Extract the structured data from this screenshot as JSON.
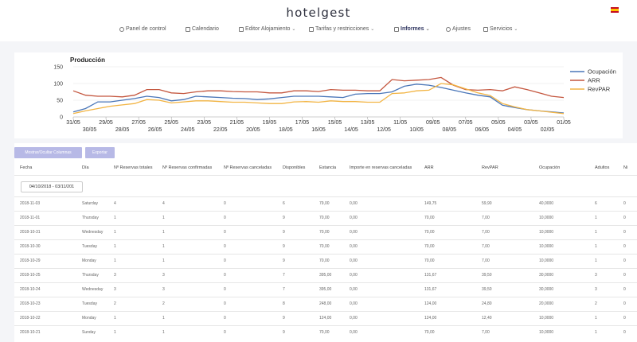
{
  "app": {
    "logo": "hotelgest",
    "flag": "spain-flag-icon"
  },
  "nav": [
    {
      "label": "Panel de control",
      "icon": "dashboard-icon",
      "caret": false,
      "active": false
    },
    {
      "label": "Calendario",
      "icon": "calendar-icon",
      "caret": false,
      "active": false
    },
    {
      "label": "Editor Alojamiento",
      "icon": "edit-icon",
      "caret": true,
      "active": false
    },
    {
      "label": "Tarifas y restricciones",
      "icon": "tag-icon",
      "caret": true,
      "active": false
    },
    {
      "label": "Informes",
      "icon": "report-icon",
      "caret": true,
      "active": true
    },
    {
      "label": "Ajustes",
      "icon": "gear-icon",
      "caret": false,
      "active": false
    },
    {
      "label": "Servicios",
      "icon": "services-icon",
      "caret": true,
      "active": false
    }
  ],
  "chart_data": {
    "type": "line",
    "title": "Producción",
    "ylim": [
      0,
      150
    ],
    "yticks": [
      0,
      50,
      100,
      150
    ],
    "x_labels_top": [
      "31/05",
      "29/05",
      "27/05",
      "25/05",
      "23/05",
      "21/05",
      "19/05",
      "17/05",
      "15/05",
      "13/05",
      "11/05",
      "09/05",
      "07/05",
      "05/05",
      "03/05",
      "01/05"
    ],
    "x_labels_bottom": [
      "30/05",
      "28/05",
      "26/05",
      "24/05",
      "22/05",
      "20/05",
      "18/05",
      "16/05",
      "14/05",
      "12/05",
      "10/05",
      "08/05",
      "06/05",
      "04/05",
      "02/05"
    ],
    "legend_placement": "right",
    "series": [
      {
        "name": "Ocupación",
        "color": "#4a76b8",
        "values": [
          15,
          25,
          45,
          45,
          50,
          55,
          62,
          58,
          48,
          52,
          62,
          60,
          58,
          56,
          55,
          52,
          54,
          58,
          62,
          62,
          62,
          60,
          58,
          68,
          70,
          70,
          75,
          92,
          98,
          95,
          88,
          80,
          72,
          65,
          60,
          35,
          28,
          22,
          18,
          15,
          12
        ]
      },
      {
        "name": "ARR",
        "color": "#c4563e",
        "values": [
          78,
          65,
          62,
          62,
          60,
          65,
          82,
          82,
          72,
          70,
          75,
          78,
          78,
          76,
          75,
          75,
          72,
          72,
          78,
          78,
          76,
          82,
          80,
          80,
          78,
          78,
          112,
          108,
          110,
          112,
          118,
          95,
          82,
          80,
          82,
          78,
          90,
          82,
          72,
          62,
          58
        ]
      },
      {
        "name": "RevPAR",
        "color": "#f2b443",
        "values": [
          10,
          18,
          25,
          32,
          36,
          40,
          52,
          50,
          42,
          45,
          48,
          48,
          46,
          44,
          44,
          42,
          40,
          40,
          45,
          46,
          44,
          48,
          46,
          46,
          44,
          44,
          70,
          72,
          78,
          80,
          100,
          96,
          84,
          72,
          64,
          40,
          30,
          22,
          18,
          14,
          10
        ]
      }
    ]
  },
  "table": {
    "buttons": {
      "toggle_columns": "Mostrar/Ocultar Columnas",
      "export": "Exportar"
    },
    "date_range": "04/10/2018 - 03/11/201",
    "headers": [
      "Fecha",
      "Día",
      "Nº Reservas totales",
      "Nº Reservas confirmadas",
      "Nº Reservas canceladas",
      "Disponibles",
      "Estancia",
      "Importe en reservas canceladas",
      "ARR",
      "RevPAR",
      "Ocupación",
      "Adultos",
      "Ni"
    ],
    "rows": [
      [
        "2018-11-03",
        "Saturday",
        "4",
        "4",
        "0",
        "6",
        "79,00",
        "0,00",
        "149,75",
        "59,90",
        "40,0000",
        "6",
        "0"
      ],
      [
        "2018-11-01",
        "Thursday",
        "1",
        "1",
        "0",
        "9",
        "70,00",
        "0,00",
        "70,00",
        "7,00",
        "10,0000",
        "1",
        "0"
      ],
      [
        "2018-10-31",
        "Wednesday",
        "1",
        "1",
        "0",
        "9",
        "70,00",
        "0,00",
        "70,00",
        "7,00",
        "10,0000",
        "1",
        "0"
      ],
      [
        "2018-10-30",
        "Tuesday",
        "1",
        "1",
        "0",
        "9",
        "70,00",
        "0,00",
        "70,00",
        "7,00",
        "10,0000",
        "1",
        "0"
      ],
      [
        "2018-10-29",
        "Monday",
        "1",
        "1",
        "0",
        "9",
        "70,00",
        "0,00",
        "70,00",
        "7,00",
        "10,0000",
        "1",
        "0"
      ],
      [
        "2018-10-25",
        "Thursday",
        "3",
        "3",
        "0",
        "7",
        "395,00",
        "0,00",
        "131,67",
        "39,50",
        "30,0000",
        "3",
        "0"
      ],
      [
        "2018-10-24",
        "Wednesday",
        "3",
        "3",
        "0",
        "7",
        "395,00",
        "0,00",
        "131,67",
        "39,50",
        "30,0000",
        "3",
        "0"
      ],
      [
        "2018-10-23",
        "Tuesday",
        "2",
        "2",
        "0",
        "8",
        "248,00",
        "0,00",
        "124,00",
        "24,80",
        "20,0000",
        "2",
        "0"
      ],
      [
        "2018-10-22",
        "Monday",
        "1",
        "1",
        "0",
        "9",
        "124,00",
        "0,00",
        "124,00",
        "12,40",
        "10,0000",
        "1",
        "0"
      ],
      [
        "2018-10-21",
        "Sunday",
        "1",
        "1",
        "0",
        "9",
        "70,00",
        "0,00",
        "70,00",
        "7,00",
        "10,0000",
        "1",
        "0"
      ]
    ]
  }
}
